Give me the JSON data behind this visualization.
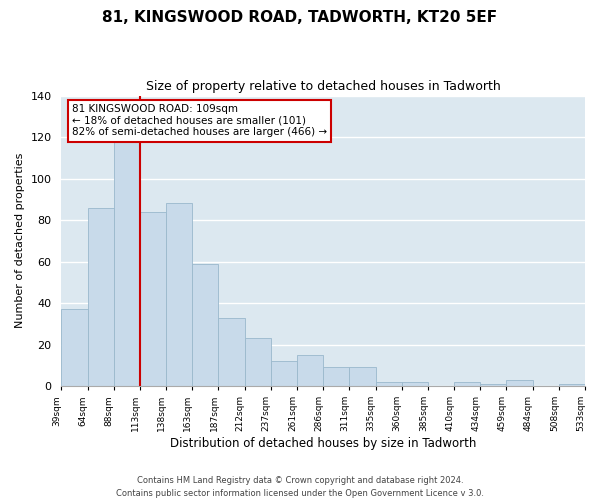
{
  "title": "81, KINGSWOOD ROAD, TADWORTH, KT20 5EF",
  "subtitle": "Size of property relative to detached houses in Tadworth",
  "xlabel": "Distribution of detached houses by size in Tadworth",
  "ylabel": "Number of detached properties",
  "bar_labels": [
    "39sqm",
    "64sqm",
    "88sqm",
    "113sqm",
    "138sqm",
    "163sqm",
    "187sqm",
    "212sqm",
    "237sqm",
    "261sqm",
    "286sqm",
    "311sqm",
    "335sqm",
    "360sqm",
    "385sqm",
    "410sqm",
    "434sqm",
    "459sqm",
    "484sqm",
    "508sqm",
    "533sqm"
  ],
  "bar_heights": [
    37,
    86,
    118,
    84,
    88,
    59,
    33,
    23,
    12,
    15,
    9,
    9,
    2,
    2,
    0,
    2,
    1,
    3,
    0,
    1
  ],
  "bar_color": "#c8daea",
  "bar_edge_color": "#9ab8cc",
  "vline_x_index": 3,
  "vline_color": "#cc0000",
  "annotation_line1": "81 KINGSWOOD ROAD: 109sqm",
  "annotation_line2": "← 18% of detached houses are smaller (101)",
  "annotation_line3": "82% of semi-detached houses are larger (466) →",
  "annotation_box_edge_color": "#cc0000",
  "ylim": [
    0,
    140
  ],
  "yticks": [
    0,
    20,
    40,
    60,
    80,
    100,
    120,
    140
  ],
  "footer_text": "Contains HM Land Registry data © Crown copyright and database right 2024.\nContains public sector information licensed under the Open Government Licence v 3.0.",
  "background_color": "#ffffff",
  "plot_bg_color": "#dce8f0",
  "grid_color": "#ffffff"
}
